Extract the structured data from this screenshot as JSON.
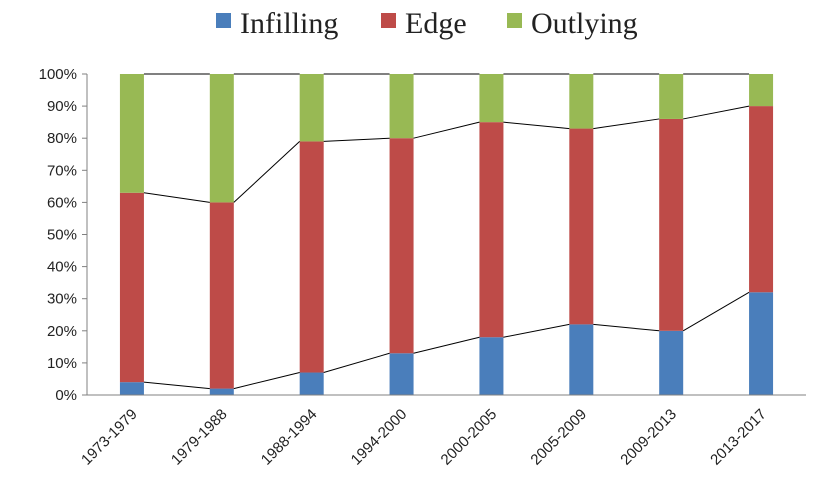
{
  "chart_data": {
    "type": "bar",
    "stacked": true,
    "percent_stacked": true,
    "title": "",
    "xlabel": "",
    "ylabel": "",
    "ylim": [
      0,
      100
    ],
    "yticks": [
      "0%",
      "10%",
      "20%",
      "30%",
      "40%",
      "50%",
      "60%",
      "70%",
      "80%",
      "90%",
      "100%"
    ],
    "categories": [
      "1973-1979",
      "1979-1988",
      "1988-1994",
      "1994-2000",
      "2000-2005",
      "2005-2009",
      "2009-2013",
      "2013-2017"
    ],
    "series": [
      {
        "name": "Infilling",
        "color": "#4a7ebb",
        "values": [
          4,
          2,
          7,
          13,
          18,
          22,
          20,
          32
        ]
      },
      {
        "name": "Edge",
        "color": "#be4b48",
        "values": [
          59,
          58,
          72,
          67,
          67,
          61,
          66,
          58
        ]
      },
      {
        "name": "Outlying",
        "color": "#98b954",
        "values": [
          37,
          40,
          21,
          20,
          15,
          17,
          14,
          10
        ]
      }
    ],
    "series_lines": true,
    "legend_position": "top",
    "grid": false
  }
}
